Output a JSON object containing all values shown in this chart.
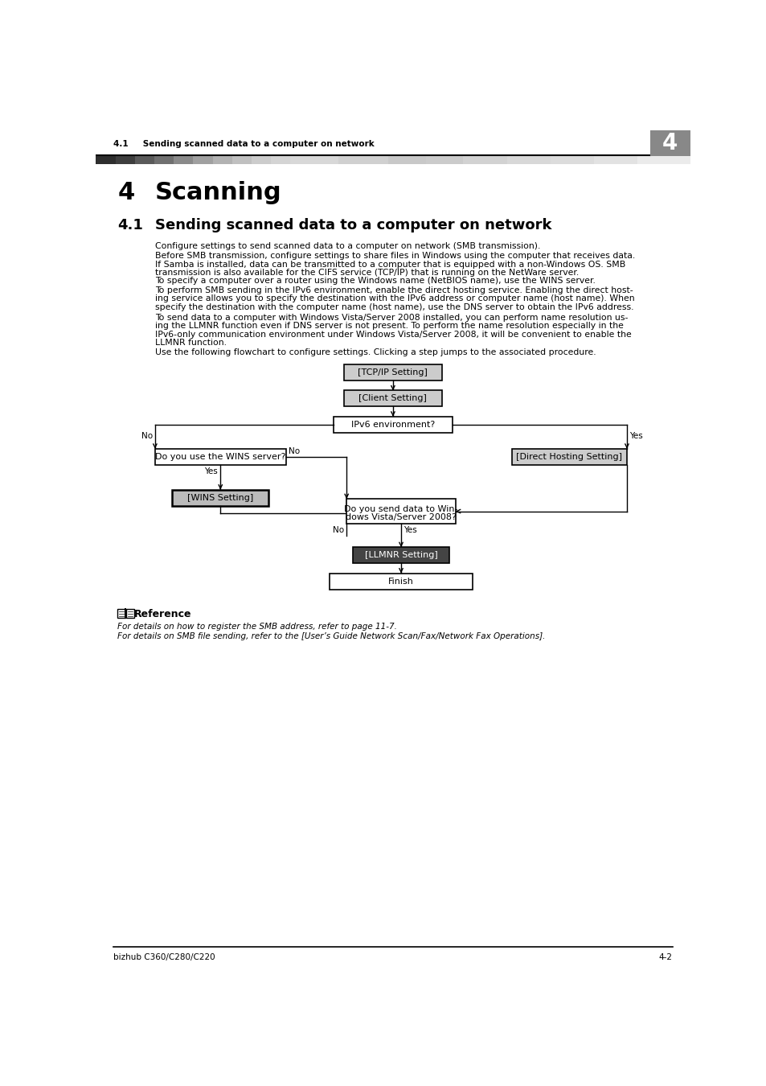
{
  "page_title_left": "4.1     Sending scanned data to a computer on network",
  "chapter_number": "4",
  "chapter_title": "Scanning",
  "section_number": "4.1",
  "section_title": "Sending scanned data to a computer on network",
  "body_text_lines": [
    [
      "Configure settings to send scanned data to a computer on network (SMB transmission)."
    ],
    [
      "Before SMB transmission, configure settings to share files in Windows using the computer that receives data."
    ],
    [
      "If Samba is installed, data can be transmitted to a computer that is equipped with a non-Windows OS. SMB",
      "transmission is also available for the CIFS service (TCP/IP) that is running on the NetWare server."
    ],
    [
      "To specify a computer over a router using the Windows name (NetBIOS name), use the WINS server."
    ],
    [
      "To perform SMB sending in the IPv6 environment, enable the direct hosting service. Enabling the direct host-",
      "ing service allows you to specify the destination with the IPv6 address or computer name (host name). When",
      "specify the destination with the computer name (host name), use the DNS server to obtain the IPv6 address."
    ],
    [
      "To send data to a computer with Windows Vista/Server 2008 installed, you can perform name resolution us-",
      "ing the LLMNR function even if DNS server is not present. To perform the name resolution especially in the",
      "IPv6-only communication environment under Windows Vista/Server 2008, it will be convenient to enable the",
      "LLMNR function."
    ],
    [
      "Use the following flowchart to configure settings. Clicking a step jumps to the associated procedure."
    ]
  ],
  "flowchart": {
    "tcp_ip_label": "[TCP/IP Setting]",
    "client_label": "[Client Setting]",
    "ipv6_label": "IPv6 environment?",
    "wins_q_label": "Do you use the WINS server?",
    "wins_s_label": "[WINS Setting]",
    "direct_label": "[Direct Hosting Setting]",
    "vista_line1": "Do you send data to Win-",
    "vista_line2": "dows Vista/Server 2008?",
    "llmnr_label": "[LLMNR Setting]",
    "finish_label": "Finish"
  },
  "reference_title": "Reference",
  "ref_line1": "For details on how to register the SMB address, refer to page 11-7.",
  "ref_line2": "For details on SMB file sending, refer to the [User’s Guide Network Scan/Fax/Network Fax Operations].",
  "footer_left": "bizhub C360/C280/C220",
  "footer_right": "4-2",
  "stripe_segments": [
    [
      0,
      32,
      "#2e2e2e"
    ],
    [
      32,
      63,
      "#3e3e3e"
    ],
    [
      63,
      94,
      "#5a5a5a"
    ],
    [
      94,
      125,
      "#707070"
    ],
    [
      125,
      156,
      "#8a8a8a"
    ],
    [
      156,
      188,
      "#a0a0a0"
    ],
    [
      188,
      219,
      "#b2b2b2"
    ],
    [
      219,
      250,
      "#c0c0c0"
    ],
    [
      250,
      281,
      "#cccccc"
    ],
    [
      281,
      312,
      "#d4d4d4"
    ],
    [
      312,
      390,
      "#d8d8d8"
    ],
    [
      390,
      470,
      "#d0d0d0"
    ],
    [
      470,
      530,
      "#c8c8c8"
    ],
    [
      530,
      590,
      "#cbcbcb"
    ],
    [
      590,
      660,
      "#d2d2d2"
    ],
    [
      660,
      730,
      "#d8d8d8"
    ],
    [
      730,
      800,
      "#dcdcdc"
    ],
    [
      800,
      870,
      "#e2e2e2"
    ],
    [
      870,
      954,
      "#ebebeb"
    ]
  ]
}
